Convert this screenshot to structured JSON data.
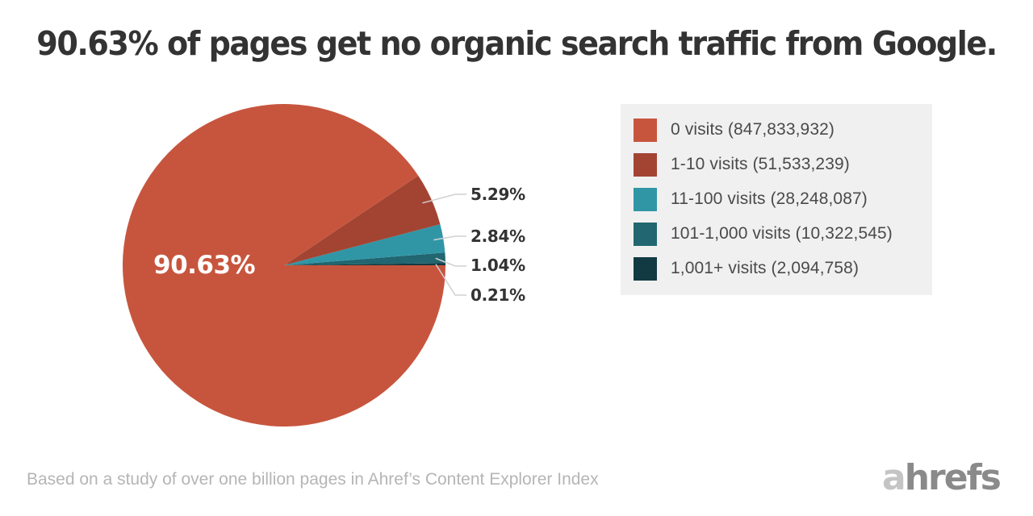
{
  "title": "90.63% of pages get no organic search traffic from Google.",
  "center_label": "90.63%",
  "slice_labels": [
    "5.29%",
    "2.84%",
    "1.04%",
    "0.21%"
  ],
  "legend": [
    {
      "label": "0 visits (847,833,932)",
      "color": "#c7553d"
    },
    {
      "label": "1-10 visits (51,533,239)",
      "color": "#a34433"
    },
    {
      "label": "11-100 visits (28,248,087)",
      "color": "#3096a6"
    },
    {
      "label": "101-1,000 visits (10,322,545)",
      "color": "#216670"
    },
    {
      "label": "1,001+ visits (2,094,758)",
      "color": "#123a43"
    }
  ],
  "footnote": "Based on a study of over one billion pages in Ahref’s Content Explorer Index",
  "logo": {
    "a": "a",
    "rest": "hrefs"
  },
  "chart_data": {
    "type": "pie",
    "title": "90.63% of pages get no organic search traffic from Google.",
    "categories": [
      "0 visits",
      "1-10 visits",
      "11-100 visits",
      "101-1,000 visits",
      "1,001+ visits"
    ],
    "values": [
      90.63,
      5.29,
      2.84,
      1.04,
      0.21
    ],
    "counts": [
      847833932,
      51533239,
      28248087,
      10322545,
      2094758
    ],
    "colors": [
      "#c7553d",
      "#a34433",
      "#3096a6",
      "#216670",
      "#123a43"
    ],
    "unit": "%",
    "legend_position": "right",
    "annotation": "Based on a study of over one billion pages in Ahref’s Content Explorer Index"
  }
}
